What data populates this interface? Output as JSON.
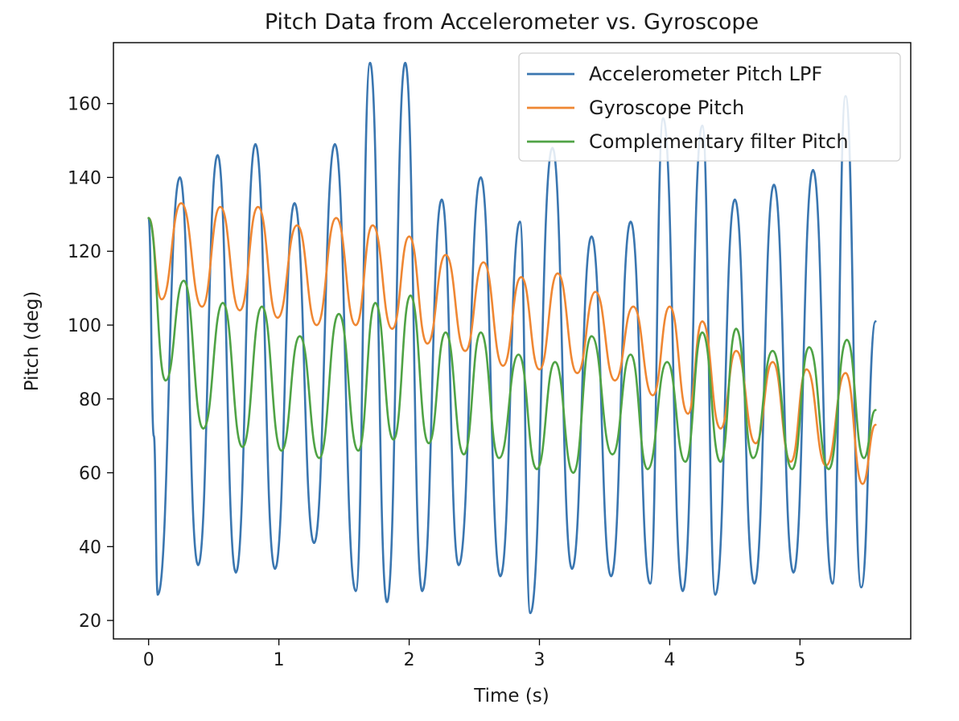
{
  "chart_data": {
    "type": "line",
    "title": "Pitch Data from Accelerometer vs. Gyroscope",
    "xlabel": "Time (s)",
    "ylabel": "Pitch (deg)",
    "xlim": [
      -0.27,
      5.85
    ],
    "ylim": [
      15,
      176.5
    ],
    "xticks": [
      0,
      1,
      2,
      3,
      4,
      5
    ],
    "yticks": [
      20,
      40,
      60,
      80,
      100,
      120,
      140,
      160
    ],
    "xtick_labels": [
      "0",
      "1",
      "2",
      "3",
      "4",
      "5"
    ],
    "ytick_labels": [
      "20",
      "40",
      "60",
      "80",
      "100",
      "120",
      "140",
      "160"
    ],
    "grid": false,
    "legend_position": "top-right",
    "series": [
      {
        "name": "Accelerometer Pitch LPF",
        "color": "#3a76b0",
        "x": [
          0.0,
          0.04,
          0.07,
          0.24,
          0.38,
          0.53,
          0.67,
          0.82,
          0.97,
          1.12,
          1.27,
          1.43,
          1.59,
          1.7,
          1.83,
          1.97,
          2.1,
          2.25,
          2.38,
          2.55,
          2.7,
          2.85,
          2.93,
          3.1,
          3.25,
          3.4,
          3.55,
          3.7,
          3.85,
          3.95,
          4.1,
          4.25,
          4.35,
          4.5,
          4.65,
          4.8,
          4.95,
          5.1,
          5.25,
          5.35,
          5.47,
          5.58
        ],
        "y": [
          129,
          70,
          27,
          140,
          35,
          146,
          33,
          149,
          34,
          133,
          41,
          149,
          28,
          171,
          25,
          171,
          28,
          134,
          35,
          140,
          32,
          128,
          22,
          148,
          34,
          124,
          32,
          128,
          30,
          156,
          28,
          154,
          27,
          134,
          30,
          138,
          33,
          142,
          30,
          162,
          29,
          101
        ]
      },
      {
        "name": "Gyroscope Pitch",
        "color": "#ef8733",
        "x": [
          0.0,
          0.1,
          0.25,
          0.41,
          0.55,
          0.7,
          0.84,
          0.99,
          1.14,
          1.29,
          1.44,
          1.59,
          1.72,
          1.87,
          2.0,
          2.14,
          2.28,
          2.43,
          2.57,
          2.72,
          2.86,
          3.0,
          3.14,
          3.29,
          3.43,
          3.58,
          3.72,
          3.87,
          4.0,
          4.14,
          4.25,
          4.39,
          4.51,
          4.66,
          4.79,
          4.93,
          5.05,
          5.2,
          5.35,
          5.48,
          5.58
        ],
        "y": [
          129,
          107,
          133,
          105,
          132,
          104,
          132,
          102,
          127,
          100,
          129,
          100,
          127,
          99,
          124,
          95,
          119,
          93,
          117,
          89,
          113,
          88,
          114,
          87,
          109,
          85,
          105,
          81,
          105,
          76,
          101,
          72,
          93,
          68,
          90,
          63,
          88,
          62,
          87,
          57,
          73
        ]
      },
      {
        "name": "Complementary filter Pitch",
        "color": "#4fa345",
        "x": [
          0.0,
          0.13,
          0.27,
          0.42,
          0.57,
          0.72,
          0.87,
          1.02,
          1.16,
          1.31,
          1.46,
          1.61,
          1.74,
          1.88,
          2.01,
          2.15,
          2.28,
          2.42,
          2.55,
          2.69,
          2.84,
          2.98,
          3.12,
          3.26,
          3.4,
          3.56,
          3.7,
          3.83,
          3.98,
          4.12,
          4.25,
          4.39,
          4.51,
          4.64,
          4.79,
          4.94,
          5.07,
          5.22,
          5.36,
          5.49,
          5.58
        ],
        "y": [
          129,
          85,
          112,
          72,
          106,
          67,
          105,
          66,
          97,
          64,
          103,
          66,
          106,
          69,
          108,
          68,
          98,
          65,
          98,
          64,
          92,
          61,
          90,
          60,
          97,
          65,
          92,
          61,
          90,
          63,
          98,
          63,
          99,
          64,
          93,
          61,
          94,
          61,
          96,
          64,
          77
        ]
      }
    ]
  }
}
